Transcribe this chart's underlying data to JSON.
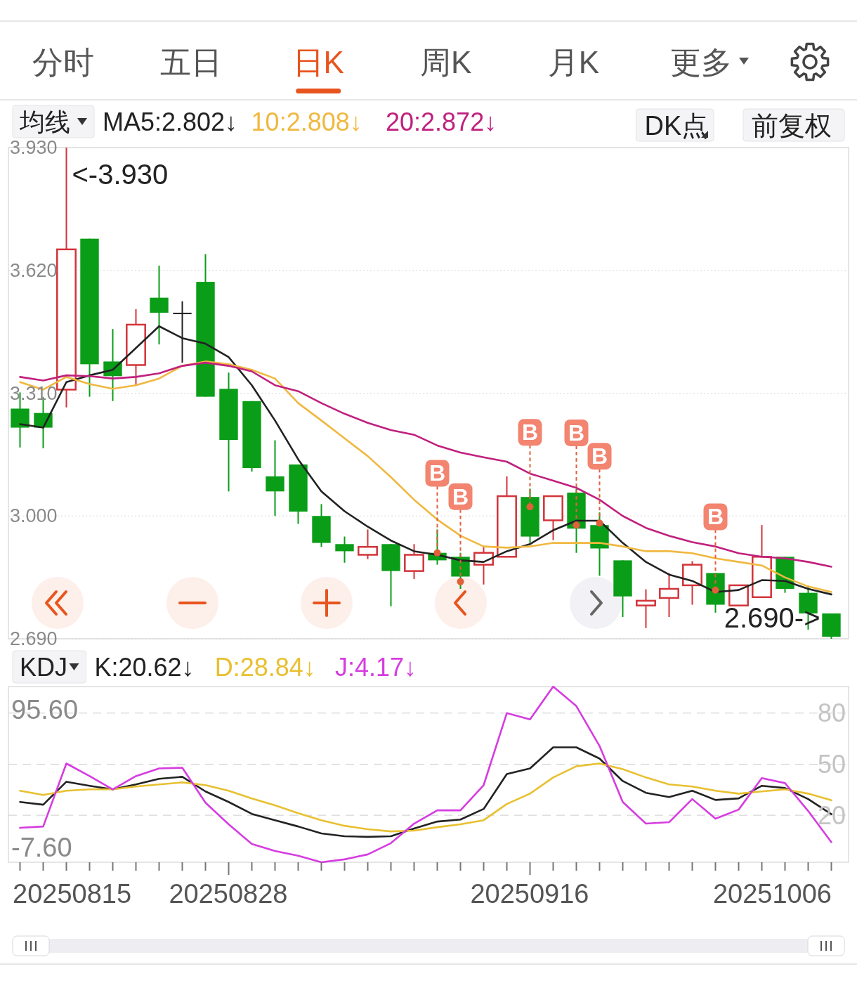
{
  "chart_data": [
    {
      "type": "candlestick",
      "legend_title": "均线",
      "grid": true,
      "tick_labels": "y",
      "categories": [
        null,
        null,
        null,
        null,
        null,
        null,
        null,
        null,
        null,
        null,
        null,
        null,
        null,
        null,
        null,
        null,
        null,
        null,
        null,
        null,
        null,
        null,
        null,
        null,
        null,
        null,
        null,
        null,
        null,
        null,
        null,
        null,
        null,
        null,
        null,
        null
      ],
      "ohlc": [
        [
          3.271,
          3.312,
          3.173,
          3.223
        ],
        [
          3.26,
          3.3,
          3.171,
          3.223
        ],
        [
          3.319,
          3.93,
          3.274,
          3.673
        ],
        [
          3.7,
          3.7,
          3.301,
          3.383
        ],
        [
          3.39,
          3.472,
          3.29,
          3.353
        ],
        [
          3.381,
          3.522,
          3.331,
          3.483
        ],
        [
          3.551,
          3.632,
          3.433,
          3.513
        ],
        [
          3.513,
          3.542,
          3.387,
          3.513
        ],
        [
          3.591,
          3.661,
          3.301,
          3.301
        ],
        [
          3.321,
          3.362,
          3.062,
          3.192
        ],
        [
          3.29,
          3.29,
          3.112,
          3.121
        ],
        [
          3.1,
          3.191,
          3.0,
          3.062
        ],
        [
          3.13,
          3.13,
          2.98,
          3.011
        ],
        [
          3.0,
          3.03,
          2.922,
          2.932
        ],
        [
          2.929,
          2.948,
          2.882,
          2.911
        ],
        [
          2.902,
          2.966,
          2.891,
          2.922
        ],
        [
          2.929,
          2.929,
          2.772,
          2.861
        ],
        [
          2.861,
          2.929,
          2.841,
          2.902
        ],
        [
          2.907,
          2.966,
          2.877,
          2.888
        ],
        [
          2.897,
          2.907,
          2.816,
          2.847
        ],
        [
          2.877,
          2.925,
          2.827,
          2.907
        ],
        [
          2.897,
          3.1,
          2.897,
          3.05
        ],
        [
          3.048,
          3.069,
          2.932,
          2.948
        ],
        [
          2.989,
          3.05,
          2.939,
          3.05
        ],
        [
          3.059,
          3.068,
          2.907,
          2.968
        ],
        [
          2.977,
          3.009,
          2.849,
          2.918
        ],
        [
          2.888,
          2.888,
          2.745,
          2.797
        ],
        [
          2.774,
          2.815,
          2.717,
          2.786
        ],
        [
          2.793,
          2.856,
          2.745,
          2.816
        ],
        [
          2.825,
          2.886,
          2.776,
          2.877
        ],
        [
          2.856,
          2.856,
          2.756,
          2.776
        ],
        [
          2.774,
          2.825,
          2.774,
          2.825
        ],
        [
          2.795,
          2.977,
          2.795,
          2.897
        ],
        [
          2.897,
          2.897,
          2.806,
          2.816
        ],
        [
          2.806,
          2.824,
          2.713,
          2.754
        ],
        [
          2.754,
          2.754,
          2.69,
          2.695
        ]
      ],
      "ylim": [
        2.69,
        3.93
      ],
      "yticks": [
        {
          "value": 2.69,
          "label": "2.690"
        },
        {
          "value": 3.0,
          "label": "3.000"
        },
        {
          "value": 3.31,
          "label": "3.310"
        },
        {
          "value": 3.62,
          "label": "3.620"
        },
        {
          "value": 3.93,
          "label": "3.930"
        }
      ],
      "series": [
        {
          "type": "line",
          "name": "MA5:2.802↓",
          "color": "#222222",
          "values": [
            3.232,
            3.223,
            3.338,
            3.355,
            3.369,
            3.424,
            3.479,
            3.449,
            3.435,
            3.401,
            3.33,
            3.241,
            3.143,
            3.062,
            3.012,
            2.973,
            2.938,
            2.911,
            2.902,
            2.888,
            2.884,
            2.911,
            2.929,
            2.964,
            2.988,
            2.988,
            2.932,
            2.884,
            2.852,
            2.836,
            2.808,
            2.813,
            2.838,
            2.836,
            2.816,
            2.802
          ]
        },
        {
          "type": "line",
          "name": "10:2.808↓",
          "color": "#f0b840",
          "values": [
            3.338,
            3.319,
            3.351,
            3.333,
            3.321,
            3.33,
            3.347,
            3.379,
            3.39,
            3.383,
            3.369,
            3.347,
            3.285,
            3.241,
            3.196,
            3.151,
            3.098,
            3.041,
            2.991,
            2.95,
            2.923,
            2.92,
            2.923,
            2.932,
            2.932,
            2.932,
            2.923,
            2.911,
            2.911,
            2.906,
            2.893,
            2.884,
            2.875,
            2.845,
            2.822,
            2.808
          ]
        },
        {
          "type": "line",
          "name": "20:2.872↓",
          "color": "#c0207e",
          "values": [
            3.351,
            3.342,
            3.355,
            3.353,
            3.347,
            3.351,
            3.36,
            3.379,
            3.387,
            3.379,
            3.365,
            3.33,
            3.315,
            3.285,
            3.258,
            3.235,
            3.217,
            3.205,
            3.178,
            3.16,
            3.148,
            3.137,
            3.107,
            3.089,
            3.071,
            3.041,
            3.0,
            2.97,
            2.95,
            2.934,
            2.923,
            2.906,
            2.897,
            2.893,
            2.884,
            2.872
          ]
        },
        {
          "type": "scatter",
          "color": "#e0603a",
          "marker": "circle",
          "values": [
            null,
            null,
            null,
            null,
            null,
            null,
            null,
            null,
            null,
            null,
            null,
            null,
            null,
            null,
            null,
            null,
            null,
            null,
            2.907,
            2.834,
            null,
            null,
            3.023,
            null,
            2.977,
            2.982,
            null,
            null,
            null,
            null,
            2.813,
            null,
            null,
            null,
            null,
            null
          ],
          "value_labels": [
            null,
            null,
            null,
            null,
            null,
            null,
            null,
            null,
            null,
            null,
            null,
            null,
            null,
            null,
            null,
            null,
            null,
            null,
            "B",
            "B",
            null,
            null,
            "B",
            null,
            "B",
            "B",
            null,
            null,
            null,
            null,
            "B",
            null,
            null,
            null,
            null,
            null
          ]
        }
      ],
      "annotations": [
        "分时",
        "五日",
        "日K",
        "周K",
        "月K",
        "更多",
        "DK点",
        "前复权",
        "<-3.930",
        "2.690->"
      ]
    },
    {
      "type": "line",
      "legend_title": "KDJ",
      "categories": [
        null,
        null,
        null,
        null,
        null,
        null,
        null,
        null,
        null,
        "20250828",
        null,
        null,
        null,
        null,
        null,
        null,
        null,
        null,
        null,
        null,
        null,
        null,
        "20250916",
        null,
        null,
        null,
        null,
        null,
        null,
        null,
        null,
        null,
        null,
        null,
        null,
        null
      ],
      "y2lim": [
        -7.6,
        95.6
      ],
      "y2ticks": [
        20,
        50,
        80
      ],
      "grid": true,
      "series": [
        {
          "name": "K:20.62↓",
          "axis": "y2",
          "color": "#222222",
          "values": [
            27.8,
            26.2,
            39.7,
            37.3,
            35.2,
            38.1,
            41.4,
            42.6,
            34,
            27.8,
            20.8,
            17.1,
            13.4,
            9.3,
            7.7,
            7.3,
            7.7,
            12.2,
            16.3,
            17.5,
            23.7,
            44.2,
            47.5,
            59.9,
            59.9,
            53.3,
            40.1,
            33.2,
            30.7,
            34.4,
            29,
            29.9,
            37.3,
            36,
            29.5,
            20.6
          ]
        },
        {
          "name": "D:28.84↓",
          "axis": "y2",
          "color": "#e8c030",
          "values": [
            34.4,
            31.9,
            34.4,
            35.2,
            35.2,
            36.9,
            38.1,
            39.3,
            37.7,
            34.4,
            29.9,
            25.8,
            21.2,
            17.1,
            13.8,
            11.8,
            10.5,
            11,
            13,
            14.7,
            17.1,
            26.6,
            32.7,
            42.2,
            48.8,
            50.4,
            47.1,
            42.2,
            38.1,
            36.9,
            34.4,
            32.7,
            34,
            35.2,
            32.7,
            28.8
          ]
        },
        {
          "name": "J:4.17↓",
          "axis": "y2",
          "color": "#d63ce0",
          "values": [
            12.6,
            13.4,
            50.4,
            43,
            35.2,
            43,
            47.5,
            47.9,
            27.4,
            14.7,
            3.1,
            -1,
            -3.8,
            -7.6,
            -5.9,
            -3,
            3.6,
            15.1,
            22.9,
            22.9,
            37.7,
            80,
            76.3,
            95.6,
            84.1,
            60.7,
            27.8,
            15.1,
            15.9,
            29.5,
            18,
            23.3,
            41.8,
            38.9,
            22.5,
            4.2
          ]
        }
      ],
      "annotations": [
        "95.60",
        "-7.60",
        "20250815",
        "20251006"
      ]
    }
  ]
}
